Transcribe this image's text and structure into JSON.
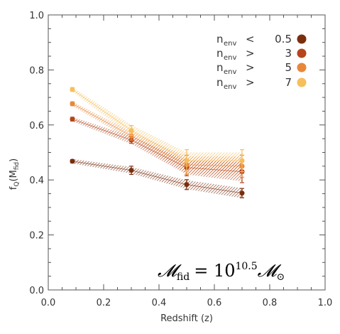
{
  "chart_data": {
    "type": "line",
    "title": "",
    "xlabel": "Redshift (z)",
    "ylabel": "f_Q(M_fid)",
    "ylabel_parts": {
      "main": "f",
      "sub1": "Q",
      "mid": "(M",
      "sub2": "fid",
      "end": ")"
    },
    "xlim": [
      0.0,
      1.0
    ],
    "ylim": [
      0.0,
      1.0
    ],
    "xticks": [
      0.0,
      0.2,
      0.4,
      0.6,
      0.8,
      1.0
    ],
    "yticks": [
      0.0,
      0.2,
      0.4,
      0.6,
      0.8,
      1.0
    ],
    "xtick_labels": [
      "0.0",
      "0.2",
      "0.4",
      "0.6",
      "0.8",
      "1.0"
    ],
    "ytick_labels": [
      "0.0",
      "0.2",
      "0.4",
      "0.6",
      "0.8",
      "1.0"
    ],
    "grid": false,
    "legend_position": "top-right",
    "x": [
      0.087,
      0.3,
      0.5,
      0.7
    ],
    "series": [
      {
        "name_main": "n",
        "name_sub": "env",
        "name_op": "<",
        "name_val": "0.5",
        "color": "#7a2e0e",
        "values": [
          0.468,
          0.435,
          0.383,
          0.352
        ],
        "errors": [
          0.006,
          0.015,
          0.018,
          0.017
        ],
        "band_halfwidth": [
          0.008,
          0.012,
          0.016,
          0.018
        ]
      },
      {
        "name_main": "n",
        "name_sub": "env",
        "name_op": ">",
        "name_val": "3",
        "color": "#b5451b",
        "values": [
          0.621,
          0.545,
          0.445,
          0.43
        ],
        "errors": [
          0.007,
          0.012,
          0.03,
          0.04
        ],
        "band_halfwidth": [
          0.008,
          0.014,
          0.025,
          0.035
        ]
      },
      {
        "name_main": "n",
        "name_sub": "env",
        "name_op": ">",
        "name_val": "5",
        "color": "#e8873a",
        "values": [
          0.677,
          0.56,
          0.455,
          0.45
        ],
        "errors": [
          0.007,
          0.015,
          0.035,
          0.04
        ],
        "band_halfwidth": [
          0.008,
          0.015,
          0.03,
          0.035
        ]
      },
      {
        "name_main": "n",
        "name_sub": "env",
        "name_op": ">",
        "name_val": "7",
        "color": "#f5bf5c",
        "values": [
          0.729,
          0.58,
          0.47,
          0.47
        ],
        "errors": [
          0.007,
          0.018,
          0.04,
          0.04
        ],
        "band_halfwidth": [
          0.008,
          0.02,
          0.03,
          0.03
        ]
      }
    ],
    "annotation": {
      "lhs": "𝓜",
      "lhs_sub": "fid",
      "eq": "= 10",
      "exp": "10.5",
      "rhs": "𝓜",
      "rhs_sub": "⊙"
    }
  }
}
